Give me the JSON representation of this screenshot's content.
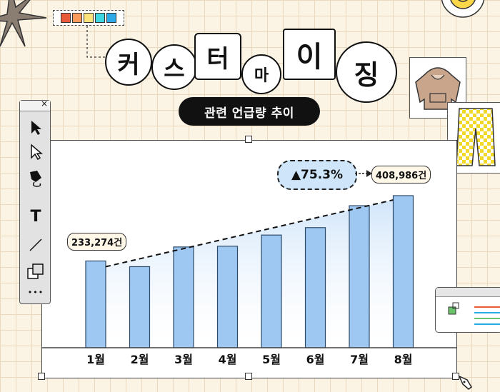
{
  "title": {
    "chars": [
      "커",
      "스",
      "터",
      "마",
      "이",
      "징"
    ]
  },
  "subtitle": "관련 언급량 추이",
  "palette_colors": [
    "#e85a3a",
    "#f79a5a",
    "#fbe27a",
    "#3ed6e0",
    "#2ea9e8"
  ],
  "colors": {
    "bar": "#9ec8f2",
    "accent_pill": "#cfe6fa",
    "background": "#fbf3e4"
  },
  "toolbar": {
    "close": "×",
    "tools": [
      "selection-arrow-icon",
      "direct-select-icon",
      "pen-tool-icon",
      "type-tool-icon",
      "line-tool-icon",
      "layers-icon",
      "more-icon"
    ],
    "type_label": "T",
    "more_label": "•••"
  },
  "chart_data": {
    "type": "bar",
    "categories": [
      "1월",
      "2월",
      "3월",
      "4월",
      "5월",
      "6월",
      "7월",
      "8월"
    ],
    "values": [
      233274,
      218000,
      271000,
      273000,
      303000,
      323000,
      382000,
      408986
    ],
    "ylim": [
      0,
      480000
    ],
    "annotations": {
      "start_label": "233,274건",
      "end_label": "408,986건",
      "change_label": "▲75.3%"
    },
    "trend_line": "dashed"
  }
}
